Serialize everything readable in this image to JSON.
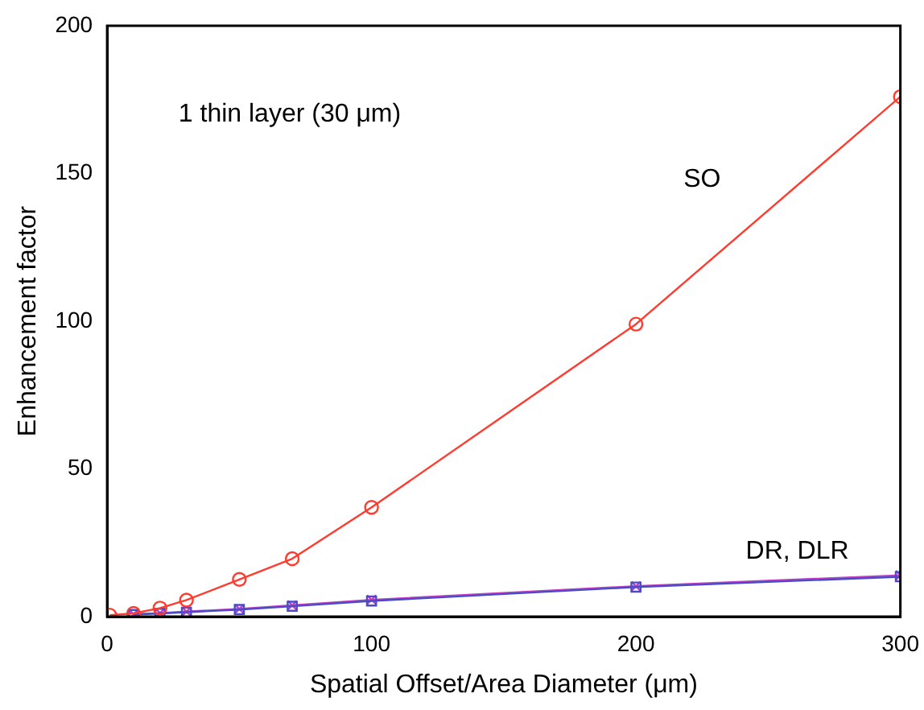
{
  "chart_data": {
    "type": "line",
    "xlabel": "Spatial Offset/Area Diameter (μm)",
    "ylabel": "Enhancement factor",
    "x": [
      1,
      10,
      20,
      30,
      50,
      70,
      100,
      200,
      300
    ],
    "series": [
      {
        "color": "#ff3b2f",
        "marker": "circle",
        "values": [
          0.5,
          1.1,
          2.9,
          5.6,
          12.6,
          19.6,
          37,
          99,
          176
        ]
      },
      {
        "color": "#4b4bc8",
        "marker": "square",
        "values": [
          null,
          0.7,
          1.1,
          1.5,
          2.4,
          3.5,
          5.3,
          10,
          13.5
        ]
      },
      {
        "color": "#c040c0",
        "marker": "cross",
        "values": [
          null,
          0.8,
          1.2,
          1.7,
          2.6,
          3.8,
          5.7,
          10.3,
          14
        ]
      }
    ],
    "xlim": [
      0,
      300
    ],
    "xticks": [
      0,
      100,
      200,
      300
    ],
    "ylim": [
      0,
      200
    ],
    "yticks": [
      0,
      50,
      100,
      150,
      200
    ],
    "grid": false,
    "legend": false,
    "annotations": [
      "1 thin layer (30 μm)",
      "SO",
      "DR, DLR"
    ]
  }
}
